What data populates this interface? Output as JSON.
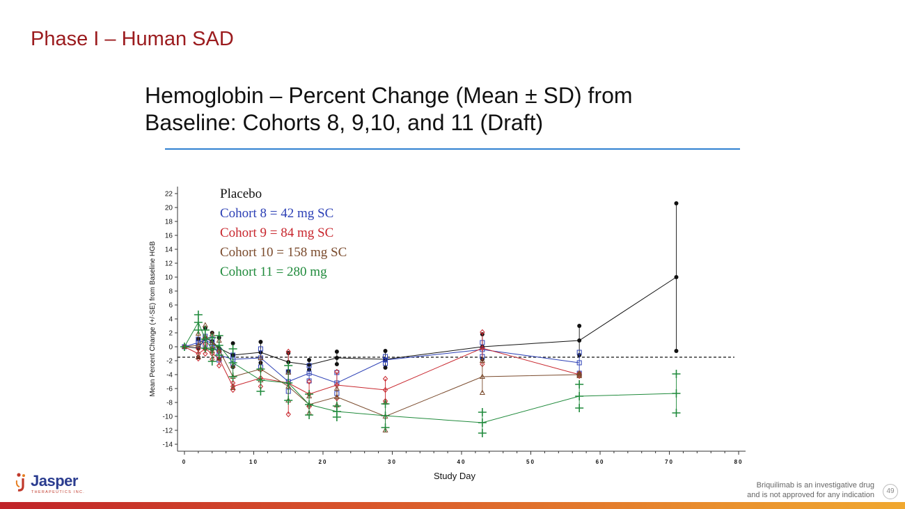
{
  "slide_title": "Phase I – Human SAD",
  "chart_heading_line1": "Hemoglobin – Percent Change (Mean ± SD) from",
  "chart_heading_line2": "Baseline: Cohorts 8, 9,10, and 11 (Draft)",
  "logo": {
    "name": "Jasper",
    "sub": "THERAPEUTICS INC."
  },
  "footnote_line1": "Briquilimab  is an investigative drug",
  "footnote_line2": "and is not approved for any indication",
  "page_number": "49",
  "colors": {
    "title": "#9b1b1e",
    "rule": "#2f80d1"
  },
  "chart_data": {
    "type": "line",
    "xlabel": "Study Day",
    "ylabel": "Mean Percent Change (+/-SE) from Baseline HGB",
    "xlim": [
      -1,
      81
    ],
    "ylim": [
      -15,
      23
    ],
    "xticks": [
      0,
      10,
      20,
      30,
      40,
      50,
      60,
      70,
      80
    ],
    "yticks": [
      -14,
      -12,
      -10,
      -8,
      -6,
      -4,
      -2,
      0,
      2,
      4,
      6,
      8,
      10,
      12,
      14,
      16,
      18,
      20,
      22
    ],
    "reference_line": -1.5,
    "legend_position": "top-left",
    "series": [
      {
        "name": "Placebo",
        "color": "#111111",
        "marker": "dot",
        "x": [
          0,
          2,
          3,
          4,
          5,
          7,
          11,
          15,
          18,
          22,
          29,
          43,
          57,
          71
        ],
        "y": [
          0,
          -0.2,
          1.2,
          0.8,
          -0.2,
          -1.2,
          -0.8,
          -2.2,
          -2.6,
          -1.6,
          -1.8,
          0,
          0.9,
          10
        ],
        "sd": [
          0,
          1.3,
          1.5,
          1.2,
          1.5,
          1.7,
          1.5,
          1.3,
          0.7,
          0.9,
          1.2,
          1.8,
          2.1,
          10.6
        ]
      },
      {
        "name": "Cohort 8 = 42 mg SC",
        "color": "#2b3fb5",
        "marker": "square",
        "x": [
          0,
          2,
          3,
          4,
          5,
          7,
          11,
          15,
          18,
          22,
          29,
          43,
          57
        ],
        "y": [
          0,
          0.6,
          0.9,
          0.5,
          -1.2,
          -1.8,
          -1.6,
          -5,
          -3.8,
          -5.2,
          -1.9,
          -0.4,
          -2.3
        ],
        "sd": [
          0,
          0.5,
          0.6,
          0.6,
          0.7,
          0.6,
          1.3,
          1.4,
          1.1,
          1.5,
          0.5,
          1,
          1.5
        ]
      },
      {
        "name": "Cohort 9 = 84 mg SC",
        "color": "#c8262d",
        "marker": "diamond",
        "x": [
          0,
          2,
          3,
          4,
          5,
          7,
          11,
          15,
          18,
          22,
          29,
          43,
          57
        ],
        "y": [
          0,
          -1,
          -0.3,
          -1,
          -1.7,
          -5.7,
          -4.5,
          -5.2,
          -6.8,
          -5.5,
          -6.2,
          -0.2,
          -4
        ],
        "sd": [
          0,
          0.7,
          0.7,
          0.8,
          1,
          0.5,
          1.2,
          4.5,
          1.8,
          1.9,
          1.6,
          2.3,
          0.2
        ]
      },
      {
        "name": "Cohort 10 = 158 mg SC",
        "color": "#7a4a2c",
        "marker": "triangle",
        "x": [
          0,
          2,
          3,
          4,
          5,
          7,
          11,
          15,
          18,
          22,
          29,
          43,
          57
        ],
        "y": [
          0,
          0.2,
          1.5,
          0.6,
          -0.4,
          -4.3,
          -3.2,
          -5.7,
          -8.3,
          -7.2,
          -10,
          -4.3,
          -4
        ],
        "sd": [
          0,
          1.7,
          1.6,
          1.2,
          1.3,
          1.6,
          1.6,
          2,
          1.2,
          1.2,
          2,
          2.3,
          0.2
        ]
      },
      {
        "name": "Cohort 11 = 280 mg",
        "color": "#1f8a3b",
        "marker": "plus",
        "x": [
          0,
          2,
          3,
          4,
          5,
          7,
          11,
          15,
          18,
          22,
          29,
          43,
          57,
          71
        ],
        "y": [
          0,
          3.5,
          1.1,
          -0.4,
          0.2,
          -2.3,
          -4.8,
          -5.2,
          -8.3,
          -9.3,
          -9.9,
          -10.9,
          -7.1,
          -6.7
        ],
        "sd": [
          0,
          1.1,
          1.3,
          1.7,
          1.4,
          2,
          1.6,
          2.5,
          1.5,
          0.8,
          1.7,
          1.5,
          1.7,
          2.8
        ]
      }
    ]
  }
}
